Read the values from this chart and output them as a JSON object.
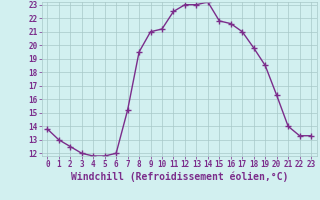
{
  "x": [
    0,
    1,
    2,
    3,
    4,
    5,
    6,
    7,
    8,
    9,
    10,
    11,
    12,
    13,
    14,
    15,
    16,
    17,
    18,
    19,
    20,
    21,
    22,
    23
  ],
  "y": [
    13.8,
    13.0,
    12.5,
    12.0,
    11.8,
    11.8,
    12.0,
    15.2,
    19.5,
    21.0,
    21.2,
    22.5,
    23.0,
    23.0,
    23.2,
    21.8,
    21.6,
    21.0,
    19.8,
    18.5,
    16.3,
    14.0,
    13.3,
    13.3
  ],
  "line_color": "#7B2D8B",
  "marker": "+",
  "marker_size": 4,
  "bg_color": "#d2f0f0",
  "grid_color": "#a8c8c8",
  "xlabel": "Windchill (Refroidissement éolien,°C)",
  "xlabel_color": "#7B2D8B",
  "ylim": [
    12,
    23
  ],
  "xlim": [
    -0.5,
    23.5
  ],
  "yticks": [
    12,
    13,
    14,
    15,
    16,
    17,
    18,
    19,
    20,
    21,
    22,
    23
  ],
  "xticks": [
    0,
    1,
    2,
    3,
    4,
    5,
    6,
    7,
    8,
    9,
    10,
    11,
    12,
    13,
    14,
    15,
    16,
    17,
    18,
    19,
    20,
    21,
    22,
    23
  ],
  "tick_color": "#7B2D8B",
  "tick_fontsize": 5.5,
  "xlabel_fontsize": 7.0,
  "line_width": 1.0
}
